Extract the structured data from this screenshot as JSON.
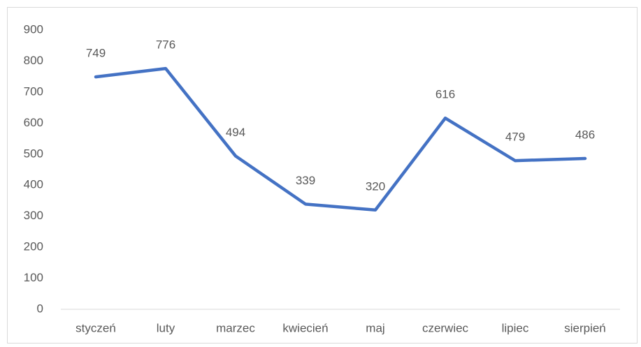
{
  "chart_data": {
    "type": "line",
    "categories": [
      "styczeń",
      "luty",
      "marzec",
      "kwiecień",
      "maj",
      "czerwiec",
      "lipiec",
      "sierpień"
    ],
    "values": [
      749,
      776,
      494,
      339,
      320,
      616,
      479,
      486
    ],
    "color": "#4472c4",
    "ylim": [
      0,
      900
    ],
    "yticks": [
      0,
      100,
      200,
      300,
      400,
      500,
      600,
      700,
      800,
      900
    ],
    "grid": false,
    "data_labels": true
  }
}
